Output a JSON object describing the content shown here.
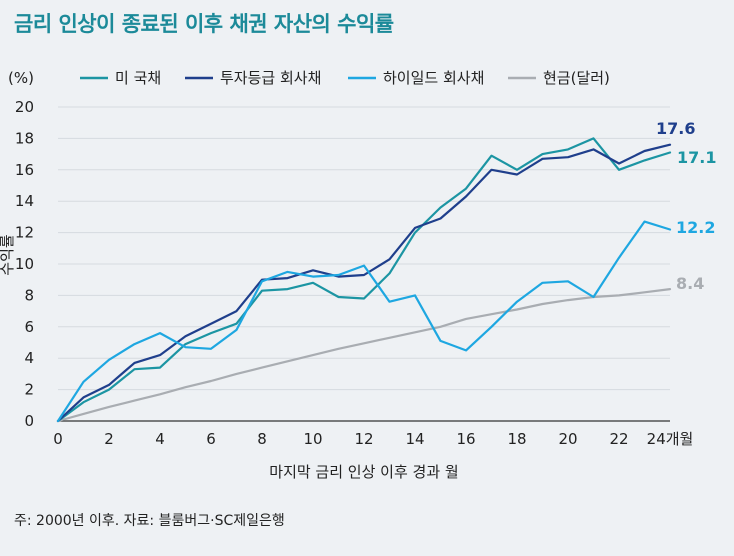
{
  "chart_data": {
    "type": "line",
    "title": "금리 인상이 종료된 이후 채권 자산의 수익률",
    "xlabel": "마지막 금리 인상 이후 경과 월",
    "ylabel": "수익률",
    "y_unit": "(%)",
    "x_unit_suffix": "개월",
    "xlim": [
      0,
      24
    ],
    "ylim": [
      0,
      20
    ],
    "x_ticks": [
      0,
      2,
      4,
      6,
      8,
      10,
      12,
      14,
      16,
      18,
      20,
      22,
      24
    ],
    "y_ticks": [
      0,
      2,
      4,
      6,
      8,
      10,
      12,
      14,
      16,
      18,
      20
    ],
    "x": [
      0,
      1,
      2,
      3,
      4,
      5,
      6,
      7,
      8,
      9,
      10,
      11,
      12,
      13,
      14,
      15,
      16,
      17,
      18,
      19,
      20,
      21,
      22,
      23,
      24
    ],
    "legend_position": "top",
    "series": [
      {
        "name": "미 국채",
        "color": "#1c95a3",
        "values": [
          0,
          1.2,
          2.0,
          3.3,
          3.4,
          4.9,
          5.6,
          6.2,
          8.3,
          8.4,
          8.8,
          7.9,
          7.8,
          9.4,
          12.0,
          13.6,
          14.8,
          16.9,
          16.0,
          17.0,
          17.3,
          18.0,
          16.0,
          16.6,
          17.1
        ],
        "end_label": "17.1"
      },
      {
        "name": "투자등급 회사채",
        "color": "#1f3f8c",
        "values": [
          0,
          1.5,
          2.3,
          3.7,
          4.2,
          5.4,
          6.2,
          7.0,
          9.0,
          9.1,
          9.6,
          9.2,
          9.3,
          10.3,
          12.3,
          12.9,
          14.3,
          16.0,
          15.7,
          16.7,
          16.8,
          17.3,
          16.4,
          17.2,
          17.6
        ],
        "end_label": "17.6"
      },
      {
        "name": "하이일드 회사채",
        "color": "#1ea7e1",
        "values": [
          0,
          2.5,
          3.9,
          4.9,
          5.6,
          4.7,
          4.6,
          5.8,
          8.9,
          9.5,
          9.2,
          9.3,
          9.9,
          7.6,
          8.0,
          5.1,
          4.5,
          6.0,
          7.6,
          8.8,
          8.9,
          7.9,
          10.4,
          12.7,
          12.2
        ],
        "end_label": "12.2"
      },
      {
        "name": "현금(달러)",
        "color": "#a9adb2",
        "values": [
          0,
          0.45,
          0.9,
          1.3,
          1.7,
          2.15,
          2.55,
          3.0,
          3.4,
          3.8,
          4.2,
          4.6,
          4.95,
          5.3,
          5.65,
          6.0,
          6.5,
          6.8,
          7.1,
          7.45,
          7.7,
          7.9,
          8.0,
          8.2,
          8.4
        ],
        "end_label": "8.4"
      }
    ],
    "grid": "horizontal"
  },
  "footnote": "주: 2000년 이후. 자료: 블룸버그·SC제일은행"
}
